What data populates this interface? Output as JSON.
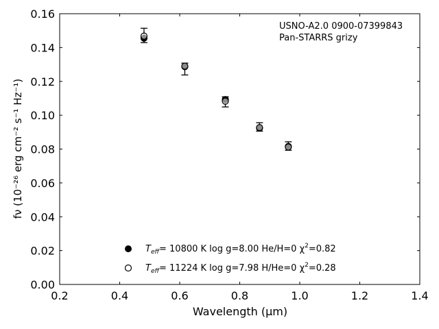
{
  "chart_data": {
    "type": "scatter",
    "annotation": [
      "USNO-A2.0 0900-07399843",
      "Pan-STARRS grizy"
    ],
    "xlabel": "Wavelength (μm)",
    "ylabel": "fν (10⁻²⁶ erg cm⁻² s⁻¹ Hz⁻¹)",
    "xlim": [
      0.2,
      1.4
    ],
    "ylim": [
      0.0,
      0.16
    ],
    "xticks": [
      0.2,
      0.4,
      0.6,
      0.8,
      1.0,
      1.2,
      1.4
    ],
    "yticks": [
      0.0,
      0.02,
      0.04,
      0.06,
      0.08,
      0.1,
      0.12,
      0.14,
      0.16
    ],
    "xtick_labels": [
      "0.2",
      "0.4",
      "0.6",
      "0.8",
      "1.0",
      "1.2",
      "1.4"
    ],
    "ytick_labels": [
      "0.00",
      "0.02",
      "0.04",
      "0.06",
      "0.08",
      "0.10",
      "0.12",
      "0.14",
      "0.16"
    ],
    "observed": {
      "x": [
        0.481,
        0.617,
        0.752,
        0.866,
        0.962
      ],
      "y": [
        0.1464,
        0.1273,
        0.1079,
        0.0931,
        0.0818
      ],
      "yerr_low": [
        0.0035,
        0.0035,
        0.003,
        0.0025,
        0.0025
      ],
      "yerr_high": [
        0.005,
        0.0035,
        0.003,
        0.0025,
        0.0025
      ]
    },
    "series": [
      {
        "marker": "filled",
        "x": [
          0.481,
          0.617,
          0.752,
          0.866,
          0.962
        ],
        "y": [
          0.1455,
          0.1287,
          0.1093,
          0.0924,
          0.0816
        ],
        "legend_parts": [
          "T",
          "eff",
          "= 10800 K  log g=8.00  He/H=0  χ",
          "2",
          "=0.82"
        ]
      },
      {
        "marker": "open",
        "x": [
          0.481,
          0.617,
          0.752,
          0.866,
          0.962
        ],
        "y": [
          0.1468,
          0.129,
          0.1083,
          0.0927,
          0.0812
        ],
        "legend_parts": [
          "T",
          "eff",
          "= 11224 K  log g=7.98  H/He=0  χ",
          "2",
          "=0.28"
        ]
      }
    ],
    "grid": false,
    "legend_location": "lower-center",
    "colors": {
      "marker": "#000000",
      "axes": "#000000",
      "background": "#ffffff"
    }
  }
}
